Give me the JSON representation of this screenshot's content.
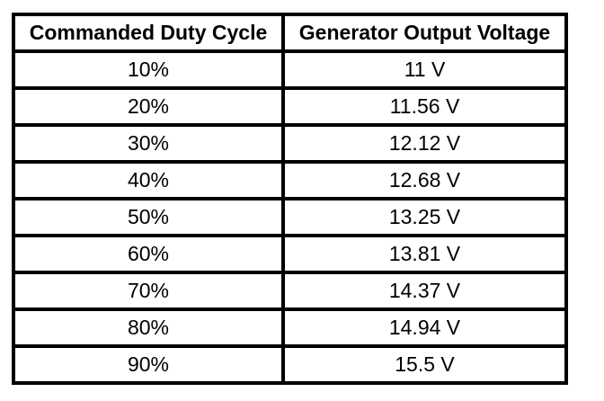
{
  "chart_data": {
    "type": "table",
    "columns": [
      "Commanded Duty Cycle",
      "Generator Output Voltage"
    ],
    "rows": [
      [
        "10%",
        "11 V"
      ],
      [
        "20%",
        "11.56 V"
      ],
      [
        "30%",
        "12.12 V"
      ],
      [
        "40%",
        "12.68 V"
      ],
      [
        "50%",
        "13.25 V"
      ],
      [
        "60%",
        "13.81 V"
      ],
      [
        "70%",
        "14.37 V"
      ],
      [
        "80%",
        "14.94 V"
      ],
      [
        "90%",
        "15.5 V"
      ]
    ],
    "duty_cycle_percent": [
      10,
      20,
      30,
      40,
      50,
      60,
      70,
      80,
      90
    ],
    "output_voltage_v": [
      11,
      11.56,
      12.12,
      12.68,
      13.25,
      13.81,
      14.37,
      14.94,
      15.5
    ],
    "title": "",
    "layout": "2-column bordered grid, header row bold, all cells center-aligned"
  },
  "table": {
    "header": {
      "duty_cycle": "Commanded Duty Cycle",
      "voltage": "Generator Output Voltage"
    }
  },
  "colors": {
    "border": "#000000",
    "background": "#ffffff",
    "text": "#000000"
  }
}
